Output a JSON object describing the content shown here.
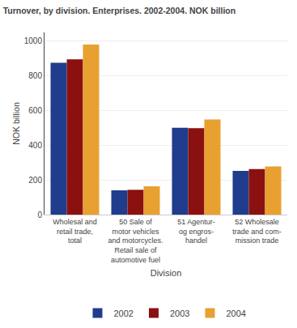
{
  "chart_data": {
    "type": "bar",
    "title": "Turnover, by division. Enterprises. 2002-2004. NOK billion",
    "xlabel": "Division",
    "ylabel": "NOK billion",
    "categories": [
      "Wholesal and\nretail trade,\ntotal",
      "50 Sale of\nmotor vehicles\nand motorcycles.\nRetail sale of\nautomotive fuel",
      "51 Agentur-\nog engros-\nhandel",
      "52 Wholesale\ntrade and com-\nmission trade"
    ],
    "series": [
      {
        "name": "2002",
        "color": "#1F3D8C",
        "values": [
          875,
          140,
          500,
          252
        ]
      },
      {
        "name": "2003",
        "color": "#8B1010",
        "values": [
          895,
          143,
          498,
          263
        ]
      },
      {
        "name": "2004",
        "color": "#E8A030",
        "values": [
          980,
          163,
          548,
          278
        ]
      }
    ],
    "ylim": [
      0,
      1050
    ],
    "yticks": [
      0,
      200,
      400,
      600,
      800,
      1000
    ],
    "grid": true,
    "legend": "bottom"
  }
}
